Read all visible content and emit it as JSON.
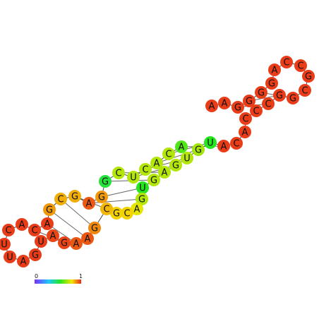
{
  "palette": {
    "low": "#7b2cff",
    "mid": "#1ec8ff",
    "mid2": "#27e620",
    "high_mid": "#f5e600",
    "high": "#e8291b",
    "edge": "#dd1b10"
  },
  "colorbar": {
    "min_label": "0",
    "max_label": "1"
  },
  "nucleotides": [
    {
      "base": "A",
      "prob": 0.98
    },
    {
      "base": "A",
      "prob": 0.98
    },
    {
      "base": "G",
      "prob": 0.98
    },
    {
      "base": "G",
      "prob": 0.98
    },
    {
      "base": "G",
      "prob": 0.98
    },
    {
      "base": "G",
      "prob": 0.98
    },
    {
      "base": "A",
      "prob": 0.98
    },
    {
      "base": "C",
      "prob": 0.98
    },
    {
      "base": "C",
      "prob": 0.98
    },
    {
      "base": "G",
      "prob": 0.98
    },
    {
      "base": "C",
      "prob": 0.98
    },
    {
      "base": "G",
      "prob": 0.98
    },
    {
      "base": "G",
      "prob": 0.98
    },
    {
      "base": "C",
      "prob": 0.98
    },
    {
      "base": "C",
      "prob": 0.98
    },
    {
      "base": "C",
      "prob": 0.98
    },
    {
      "base": "A",
      "prob": 0.98
    },
    {
      "base": "C",
      "prob": 0.98
    },
    {
      "base": "A",
      "prob": 0.98
    },
    {
      "base": "U",
      "prob": 0.55
    },
    {
      "base": "G",
      "prob": 0.7
    },
    {
      "base": "U",
      "prob": 0.72
    },
    {
      "base": "G",
      "prob": 0.72
    },
    {
      "base": "A",
      "prob": 0.72
    },
    {
      "base": "G",
      "prob": 0.72
    },
    {
      "base": "U",
      "prob": 0.55
    },
    {
      "base": "G",
      "prob": 0.72
    },
    {
      "base": "A",
      "prob": 0.78
    },
    {
      "base": "C",
      "prob": 0.82
    },
    {
      "base": "G",
      "prob": 0.82
    },
    {
      "base": "C",
      "prob": 0.85
    },
    {
      "base": "G",
      "prob": 0.9
    },
    {
      "base": "A",
      "prob": 0.95
    },
    {
      "base": "A",
      "prob": 0.95
    },
    {
      "base": "G",
      "prob": 0.97
    },
    {
      "base": "A",
      "prob": 0.97
    },
    {
      "base": "U",
      "prob": 0.98
    },
    {
      "base": "G",
      "prob": 0.98
    },
    {
      "base": "A",
      "prob": 0.98
    },
    {
      "base": "U",
      "prob": 0.98
    },
    {
      "base": "U",
      "prob": 0.98
    },
    {
      "base": "C",
      "prob": 0.98
    },
    {
      "base": "A",
      "prob": 0.98
    },
    {
      "base": "C",
      "prob": 0.98
    },
    {
      "base": "A",
      "prob": 0.98
    },
    {
      "base": "G",
      "prob": 0.88
    },
    {
      "base": "C",
      "prob": 0.86
    },
    {
      "base": "G",
      "prob": 0.86
    },
    {
      "base": "A",
      "prob": 0.95
    },
    {
      "base": "G",
      "prob": 0.88
    },
    {
      "base": "G",
      "prob": 0.52
    },
    {
      "base": "C",
      "prob": 0.72
    },
    {
      "base": "U",
      "prob": 0.72
    },
    {
      "base": "C",
      "prob": 0.72
    },
    {
      "base": "A",
      "prob": 0.72
    },
    {
      "base": "C",
      "prob": 0.72
    },
    {
      "base": "A",
      "prob": 0.6
    }
  ]
}
